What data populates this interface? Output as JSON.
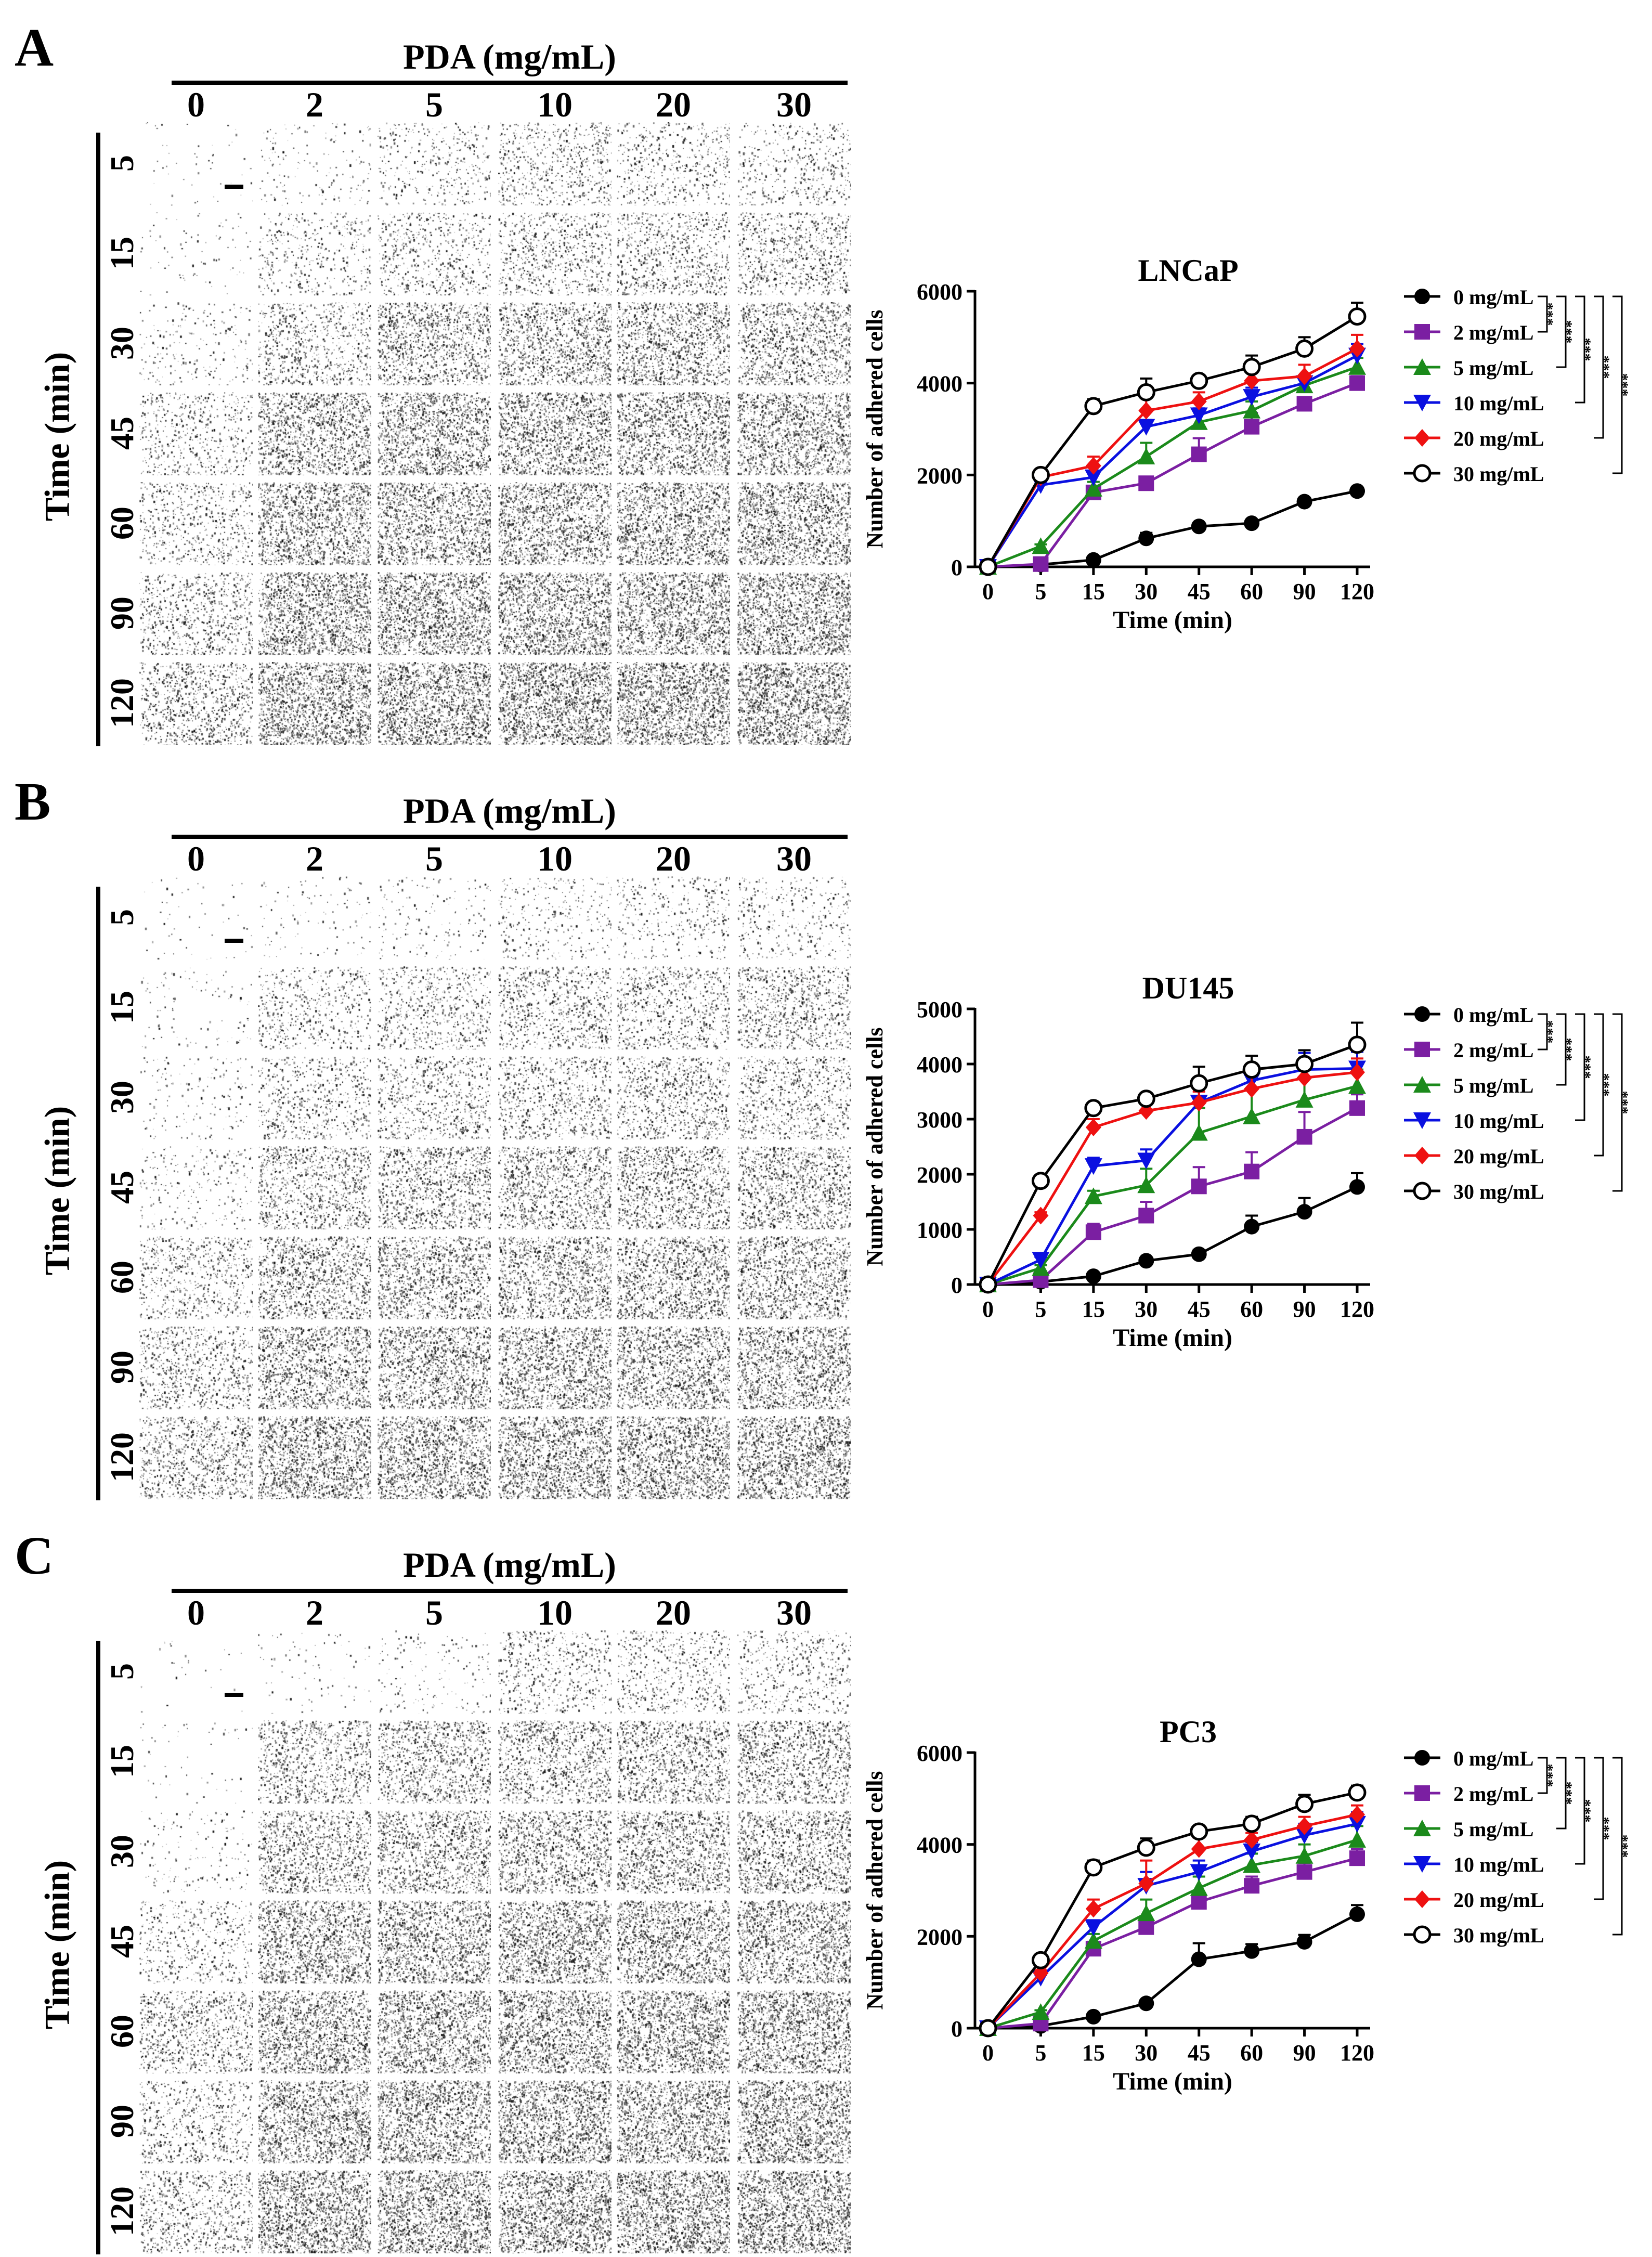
{
  "panels": [
    {
      "label": "A",
      "pda_title": "PDA (mg/mL)",
      "concentrations": [
        "0",
        "2",
        "5",
        "10",
        "20",
        "30"
      ],
      "time_title": "Time (min)",
      "times": [
        "5",
        "15",
        "30",
        "45",
        "60",
        "90",
        "120"
      ],
      "intensity": [
        [
          0.02,
          0.06,
          0.14,
          0.26,
          0.2,
          0.18
        ],
        [
          0.03,
          0.16,
          0.24,
          0.3,
          0.3,
          0.32
        ],
        [
          0.08,
          0.3,
          0.48,
          0.5,
          0.52,
          0.5
        ],
        [
          0.22,
          0.58,
          0.6,
          0.62,
          0.62,
          0.64
        ],
        [
          0.24,
          0.62,
          0.62,
          0.64,
          0.64,
          0.66
        ],
        [
          0.3,
          0.68,
          0.68,
          0.7,
          0.7,
          0.72
        ],
        [
          0.38,
          0.74,
          0.72,
          0.76,
          0.76,
          0.76
        ]
      ]
    },
    {
      "label": "B",
      "pda_title": "PDA (mg/mL)",
      "concentrations": [
        "0",
        "2",
        "5",
        "10",
        "20",
        "30"
      ],
      "time_title": "Time (min)",
      "times": [
        "5",
        "15",
        "30",
        "45",
        "60",
        "90",
        "120"
      ],
      "intensity": [
        [
          0.02,
          0.04,
          0.06,
          0.12,
          0.14,
          0.14
        ],
        [
          0.04,
          0.2,
          0.26,
          0.32,
          0.3,
          0.36
        ],
        [
          0.06,
          0.24,
          0.28,
          0.3,
          0.32,
          0.32
        ],
        [
          0.1,
          0.4,
          0.44,
          0.46,
          0.46,
          0.48
        ],
        [
          0.26,
          0.5,
          0.52,
          0.52,
          0.54,
          0.52
        ],
        [
          0.32,
          0.58,
          0.58,
          0.6,
          0.6,
          0.6
        ],
        [
          0.4,
          0.66,
          0.64,
          0.66,
          0.66,
          0.66
        ]
      ]
    },
    {
      "label": "C",
      "pda_title": "PDA (mg/mL)",
      "concentrations": [
        "0",
        "2",
        "5",
        "10",
        "20",
        "30"
      ],
      "time_title": "Time (min)",
      "times": [
        "5",
        "15",
        "30",
        "45",
        "60",
        "90",
        "120"
      ],
      "intensity": [
        [
          0.01,
          0.03,
          0.06,
          0.22,
          0.22,
          0.2
        ],
        [
          0.02,
          0.38,
          0.42,
          0.44,
          0.46,
          0.46
        ],
        [
          0.06,
          0.46,
          0.5,
          0.5,
          0.52,
          0.52
        ],
        [
          0.2,
          0.62,
          0.62,
          0.64,
          0.64,
          0.64
        ],
        [
          0.36,
          0.66,
          0.66,
          0.68,
          0.68,
          0.68
        ],
        [
          0.26,
          0.68,
          0.68,
          0.7,
          0.7,
          0.7
        ],
        [
          0.32,
          0.72,
          0.72,
          0.72,
          0.74,
          0.74
        ]
      ]
    }
  ],
  "chart_data": [
    {
      "type": "line",
      "title": "LNCaP",
      "xlabel": "Time (min)",
      "ylabel": "Number of adhered cells",
      "categories": [
        "0",
        "5",
        "15",
        "30",
        "45",
        "60",
        "90",
        "120"
      ],
      "ylim": [
        0,
        6000
      ],
      "yticks": [
        "0",
        "2000",
        "4000",
        "6000"
      ],
      "significance": [
        "***",
        "***",
        "***",
        "***",
        "***"
      ],
      "series": [
        {
          "name": "0 mg/mL",
          "color": "#000000",
          "marker": "circle",
          "values": [
            0,
            50,
            150,
            620,
            880,
            950,
            1420,
            1650
          ],
          "errors": [
            0,
            20,
            30,
            120,
            60,
            70,
            60,
            80
          ]
        },
        {
          "name": "2 mg/mL",
          "color": "#7B1FA2",
          "marker": "square",
          "values": [
            0,
            60,
            1620,
            1820,
            2450,
            3050,
            3550,
            4000
          ],
          "errors": [
            0,
            20,
            120,
            100,
            350,
            300,
            120,
            150
          ]
        },
        {
          "name": "5 mg/mL",
          "color": "#1B8A1B",
          "marker": "triangle",
          "values": [
            0,
            450,
            1700,
            2400,
            3150,
            3400,
            3950,
            4350
          ],
          "errors": [
            0,
            40,
            150,
            300,
            250,
            200,
            150,
            200
          ]
        },
        {
          "name": "10 mg/mL",
          "color": "#0A10E0",
          "marker": "triangle-down",
          "values": [
            0,
            1780,
            1950,
            3050,
            3300,
            3700,
            4000,
            4600
          ],
          "errors": [
            0,
            80,
            100,
            150,
            150,
            200,
            150,
            250
          ]
        },
        {
          "name": "20 mg/mL",
          "color": "#EE1111",
          "marker": "diamond",
          "values": [
            0,
            1950,
            2200,
            3400,
            3600,
            4050,
            4150,
            4750
          ],
          "errors": [
            0,
            80,
            200,
            300,
            200,
            200,
            250,
            300
          ]
        },
        {
          "name": "30 mg/mL",
          "color": "#000000",
          "marker": "open-circle",
          "values": [
            0,
            2000,
            3500,
            3800,
            4050,
            4350,
            4750,
            5450
          ],
          "errors": [
            0,
            80,
            150,
            300,
            100,
            250,
            250,
            300
          ]
        }
      ]
    },
    {
      "type": "line",
      "title": "DU145",
      "xlabel": "Time (min)",
      "ylabel": "Number of adhered cells",
      "categories": [
        "0",
        "5",
        "15",
        "30",
        "45",
        "60",
        "90",
        "120"
      ],
      "ylim": [
        0,
        5000
      ],
      "yticks": [
        "0",
        "1000",
        "2000",
        "3000",
        "4000",
        "5000"
      ],
      "significance": [
        "***",
        "***",
        "***",
        "***",
        "***"
      ],
      "series": [
        {
          "name": "0 mg/mL",
          "color": "#000000",
          "marker": "circle",
          "values": [
            0,
            50,
            150,
            430,
            550,
            1050,
            1320,
            1770
          ],
          "errors": [
            0,
            20,
            30,
            40,
            80,
            200,
            250,
            250
          ]
        },
        {
          "name": "2 mg/mL",
          "color": "#7B1FA2",
          "marker": "square",
          "values": [
            0,
            80,
            950,
            1250,
            1780,
            2050,
            2680,
            3200
          ],
          "errors": [
            0,
            30,
            150,
            250,
            350,
            350,
            450,
            250
          ]
        },
        {
          "name": "5 mg/mL",
          "color": "#1B8A1B",
          "marker": "triangle",
          "values": [
            0,
            300,
            1600,
            1800,
            2750,
            3050,
            3350,
            3600
          ],
          "errors": [
            0,
            50,
            100,
            300,
            450,
            500,
            400,
            300
          ]
        },
        {
          "name": "10 mg/mL",
          "color": "#0A10E0",
          "marker": "triangle-down",
          "values": [
            0,
            450,
            2150,
            2250,
            3300,
            3700,
            3900,
            3920
          ],
          "errors": [
            0,
            50,
            150,
            200,
            300,
            300,
            300,
            300
          ]
        },
        {
          "name": "20 mg/mL",
          "color": "#EE1111",
          "marker": "diamond",
          "values": [
            0,
            1250,
            2850,
            3150,
            3300,
            3550,
            3750,
            3850
          ],
          "errors": [
            0,
            60,
            150,
            200,
            200,
            250,
            200,
            250
          ]
        },
        {
          "name": "30 mg/mL",
          "color": "#000000",
          "marker": "open-circle",
          "values": [
            0,
            1880,
            3200,
            3370,
            3650,
            3900,
            4000,
            4350
          ],
          "errors": [
            0,
            50,
            80,
            60,
            300,
            250,
            250,
            400
          ]
        }
      ]
    },
    {
      "type": "line",
      "title": "PC3",
      "xlabel": "Time (min)",
      "ylabel": "Number of adhered cells",
      "categories": [
        "0",
        "5",
        "15",
        "30",
        "45",
        "60",
        "90",
        "120"
      ],
      "ylim": [
        0,
        6000
      ],
      "yticks": [
        "0",
        "2000",
        "4000",
        "6000"
      ],
      "significance": [
        "***",
        "***",
        "***",
        "***",
        "***"
      ],
      "series": [
        {
          "name": "0 mg/mL",
          "color": "#000000",
          "marker": "circle",
          "values": [
            0,
            50,
            250,
            540,
            1500,
            1680,
            1880,
            2480
          ],
          "errors": [
            0,
            20,
            30,
            40,
            350,
            150,
            150,
            200
          ]
        },
        {
          "name": "2 mg/mL",
          "color": "#7B1FA2",
          "marker": "square",
          "values": [
            0,
            100,
            1730,
            2200,
            2750,
            3100,
            3400,
            3700
          ],
          "errors": [
            0,
            30,
            150,
            200,
            200,
            200,
            200,
            200
          ]
        },
        {
          "name": "5 mg/mL",
          "color": "#1B8A1B",
          "marker": "triangle",
          "values": [
            0,
            350,
            1900,
            2500,
            3050,
            3550,
            3750,
            4100
          ],
          "errors": [
            0,
            40,
            150,
            300,
            250,
            250,
            250,
            300
          ]
        },
        {
          "name": "10 mg/mL",
          "color": "#0A10E0",
          "marker": "triangle-down",
          "values": [
            0,
            1100,
            2200,
            3100,
            3400,
            3850,
            4200,
            4450
          ],
          "errors": [
            0,
            60,
            150,
            300,
            250,
            200,
            250,
            250
          ]
        },
        {
          "name": "20 mg/mL",
          "color": "#EE1111",
          "marker": "diamond",
          "values": [
            0,
            1200,
            2600,
            3150,
            3900,
            4100,
            4400,
            4650
          ],
          "errors": [
            0,
            60,
            200,
            500,
            250,
            150,
            200,
            200
          ]
        },
        {
          "name": "30 mg/mL",
          "color": "#000000",
          "marker": "open-circle",
          "values": [
            0,
            1480,
            3500,
            3930,
            4280,
            4450,
            4880,
            5130
          ],
          "errors": [
            0,
            60,
            150,
            200,
            100,
            150,
            200,
            150
          ]
        }
      ]
    }
  ]
}
